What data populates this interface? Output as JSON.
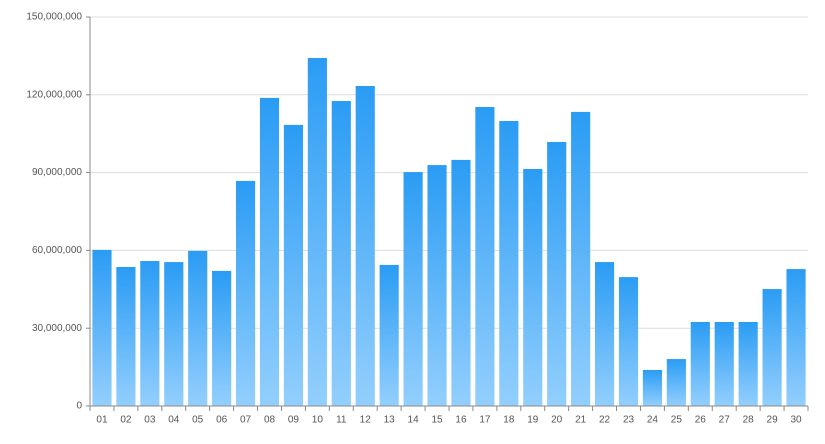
{
  "chart_data": {
    "type": "bar",
    "categories": [
      "01",
      "02",
      "03",
      "04",
      "05",
      "06",
      "07",
      "08",
      "09",
      "10",
      "11",
      "12",
      "13",
      "14",
      "15",
      "16",
      "17",
      "18",
      "19",
      "20",
      "21",
      "22",
      "23",
      "24",
      "25",
      "26",
      "27",
      "28",
      "29",
      "30"
    ],
    "values": [
      60200000,
      53600000,
      55900000,
      55500000,
      59800000,
      52100000,
      86800000,
      118800000,
      108400000,
      134200000,
      117600000,
      123400000,
      54400000,
      90200000,
      92900000,
      94900000,
      115300000,
      109900000,
      91400000,
      101800000,
      113400000,
      55500000,
      49700000,
      13900000,
      18100000,
      32400000,
      32400000,
      32400000,
      45100000,
      52800000
    ],
    "color": "#2a9cf4",
    "ylim": [
      0,
      150000000
    ],
    "yticks": [
      0,
      {
        "value": 30000000,
        "label": "30,000,000"
      },
      {
        "value": 60000000,
        "label": "60,000,000"
      },
      {
        "value": 90000000,
        "label": "90,000,000"
      },
      {
        "value": 120000000,
        "label": "120,000,000"
      },
      {
        "value": 150000000,
        "label": "150,000,000"
      }
    ],
    "grid": true
  }
}
